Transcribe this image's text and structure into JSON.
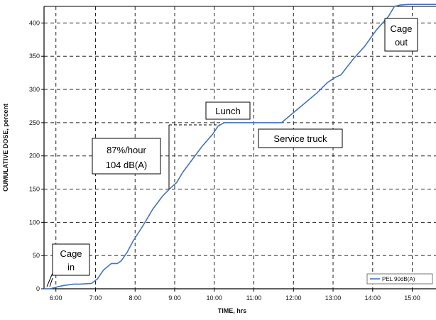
{
  "chart_data": {
    "type": "line",
    "title": "",
    "xlabel": "TIME, hrs",
    "ylabel": "CUMULATIVE DOSE, percent",
    "xlim": [
      5.7,
      15.6
    ],
    "ylim": [
      0,
      425
    ],
    "x_tick_values": [
      6,
      7,
      8,
      9,
      10,
      11,
      12,
      13,
      14,
      15
    ],
    "x_tick_labels": [
      "6:00",
      "7:00",
      "8:00",
      "9:00",
      "10:00",
      "11:00",
      "12:00",
      "13:00",
      "14:00",
      "15:00"
    ],
    "y_ticks": [
      0,
      50,
      100,
      150,
      200,
      250,
      300,
      350,
      400
    ],
    "grid": true,
    "legend": {
      "position": "bottom-right",
      "entries": [
        "PEL 90dB(A)"
      ]
    },
    "series": [
      {
        "name": "PEL 90dB(A)",
        "color": "#4472c4",
        "x": [
          5.7,
          5.85,
          6.05,
          6.2,
          6.45,
          6.6,
          6.9,
          7.05,
          7.2,
          7.4,
          7.55,
          7.65,
          7.8,
          7.95,
          8.2,
          8.45,
          8.7,
          8.9,
          9.05,
          9.2,
          9.45,
          9.7,
          9.95,
          10.1,
          10.25,
          10.4,
          10.6,
          10.9,
          11.3,
          11.7,
          12.0,
          12.3,
          12.6,
          12.85,
          13.05,
          13.2,
          13.5,
          13.8,
          14.1,
          14.4,
          14.55,
          14.7,
          14.9,
          15.1,
          15.3,
          15.6
        ],
        "y": [
          0,
          0,
          3,
          5,
          7,
          7,
          8,
          15,
          28,
          38,
          38,
          42,
          55,
          72,
          95,
          120,
          140,
          152,
          160,
          175,
          195,
          215,
          232,
          245,
          250,
          250,
          250,
          250,
          250,
          250,
          265,
          280,
          295,
          310,
          318,
          322,
          345,
          365,
          390,
          410,
          425,
          427,
          428,
          428,
          428,
          428
        ]
      }
    ],
    "annotations": [
      {
        "id": "cage-in",
        "lines": [
          "Cage",
          "in"
        ]
      },
      {
        "id": "rate",
        "lines": [
          "87%/hour",
          "104 dB(A)"
        ]
      },
      {
        "id": "lunch",
        "lines": [
          "Lunch"
        ]
      },
      {
        "id": "service-truck",
        "lines": [
          "Service  truck"
        ]
      },
      {
        "id": "cage-out",
        "lines": [
          "Cage",
          "out"
        ]
      }
    ]
  }
}
